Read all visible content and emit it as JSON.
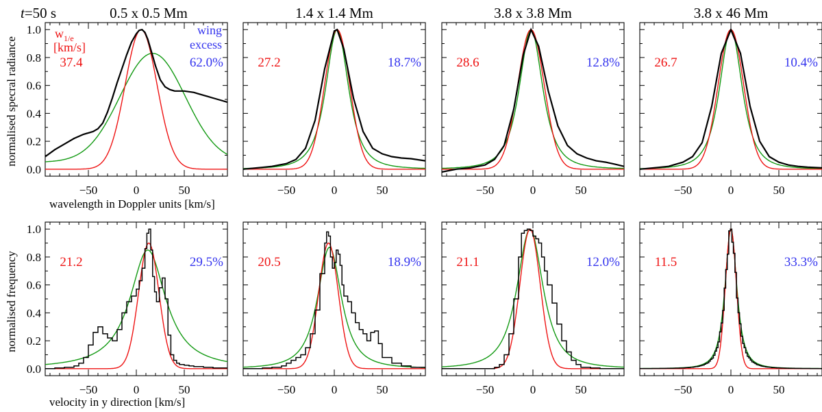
{
  "figure": {
    "time_label_t": "t",
    "time_label_rest": "=50 s",
    "row_titles": {
      "top_ylabel": "normalised specral radiance",
      "top_xlabel": "wavelength in Doppler units [km/s]",
      "bottom_ylabel": "normalised frequency",
      "bottom_xlabel": "velocity in y direction  [km/s]"
    },
    "legend": {
      "w_main": "w",
      "w_sub": "1/e",
      "w_unit": "[km/s]",
      "wing_line1": "wing",
      "wing_line2": "excess"
    },
    "colors": {
      "data": "#000000",
      "gauss": "#ee1111",
      "fit": "#119911",
      "width_text": "#ee1111",
      "excess_text": "#3333ee"
    }
  },
  "chart_data": [
    {
      "type": "line",
      "row": "top",
      "title": "0.5 x 0.5 Mm",
      "xlim": [
        -95,
        95
      ],
      "ylim": [
        -0.05,
        1.05
      ],
      "xticks": [
        -50,
        0,
        50
      ],
      "xtick_labels": [
        "−50",
        "0",
        "50"
      ],
      "yticks": [
        0,
        0.2,
        0.4,
        0.6,
        0.8,
        1.0
      ],
      "ytick_labels": [
        "0.0",
        "0.2",
        "0.4",
        "0.6",
        "0.8",
        "1.0"
      ],
      "width": "37.4",
      "excess": "62.0%",
      "series": [
        {
          "name": "data",
          "style": "line",
          "x": [
            -95,
            -85,
            -75,
            -65,
            -55,
            -50,
            -45,
            -40,
            -35,
            -30,
            -25,
            -20,
            -15,
            -10,
            -5,
            0,
            3,
            6,
            9,
            12,
            15,
            20,
            25,
            30,
            35,
            40,
            45,
            50,
            55,
            60,
            65,
            70,
            75,
            80,
            85,
            90,
            95
          ],
          "y": [
            0.09,
            0.14,
            0.18,
            0.22,
            0.25,
            0.26,
            0.27,
            0.29,
            0.33,
            0.41,
            0.51,
            0.62,
            0.72,
            0.82,
            0.91,
            0.97,
            0.995,
            1.0,
            0.98,
            0.93,
            0.86,
            0.74,
            0.64,
            0.59,
            0.57,
            0.56,
            0.56,
            0.56,
            0.555,
            0.55,
            0.54,
            0.53,
            0.52,
            0.51,
            0.5,
            0.49,
            0.48
          ]
        },
        {
          "name": "gauss",
          "gauss": {
            "c": 5,
            "s": 23.5,
            "a": 1.0,
            "b": 0
          }
        },
        {
          "name": "fit",
          "gauss": {
            "c": 17,
            "s": 48,
            "a": 0.78,
            "b": 0.05
          }
        }
      ]
    },
    {
      "type": "line",
      "row": "top",
      "title": "1.4 x 1.4 Mm",
      "xlim": [
        -95,
        95
      ],
      "ylim": [
        -0.05,
        1.05
      ],
      "xticks": [
        -50,
        0,
        50
      ],
      "xtick_labels": [
        "−50",
        "0",
        "50"
      ],
      "width": "27.2",
      "excess": "18.7%",
      "series": [
        {
          "name": "data",
          "style": "line",
          "x": [
            -95,
            -80,
            -65,
            -50,
            -40,
            -30,
            -20,
            -10,
            0,
            3,
            10,
            20,
            30,
            40,
            50,
            60,
            70,
            80,
            95
          ],
          "y": [
            0.0,
            0.01,
            0.02,
            0.04,
            0.07,
            0.15,
            0.35,
            0.72,
            0.99,
            1.0,
            0.86,
            0.51,
            0.27,
            0.15,
            0.11,
            0.09,
            0.08,
            0.075,
            0.06
          ]
        },
        {
          "name": "gauss",
          "gauss": {
            "c": 3,
            "s": 18.5,
            "a": 1.0,
            "b": 0
          }
        },
        {
          "name": "fit",
          "lorentz": {
            "c": 3,
            "g": 19,
            "p": 1.6,
            "a": 1.0
          }
        }
      ]
    },
    {
      "type": "line",
      "row": "top",
      "title": "3.8 x 3.8 Mm",
      "xlim": [
        -95,
        95
      ],
      "ylim": [
        -0.05,
        1.05
      ],
      "xticks": [
        -50,
        0,
        50
      ],
      "xtick_labels": [
        "−50",
        "0",
        "50"
      ],
      "width": "28.6",
      "excess": "12.8%",
      "series": [
        {
          "name": "data",
          "style": "line",
          "x": [
            -95,
            -80,
            -65,
            -50,
            -40,
            -30,
            -20,
            -10,
            -2,
            6,
            16,
            26,
            36,
            46,
            56,
            66,
            76,
            86,
            95
          ],
          "y": [
            -0.02,
            0.0,
            0.01,
            0.03,
            0.07,
            0.17,
            0.43,
            0.82,
            1.0,
            0.88,
            0.56,
            0.31,
            0.17,
            0.11,
            0.08,
            0.06,
            0.05,
            0.035,
            0.02
          ]
        },
        {
          "name": "gauss",
          "gauss": {
            "c": -2,
            "s": 19.5,
            "a": 1.0,
            "b": 0
          }
        },
        {
          "name": "fit",
          "lorentz": {
            "c": -2,
            "g": 19.5,
            "p": 1.6,
            "a": 1.0
          }
        }
      ]
    },
    {
      "type": "line",
      "row": "top",
      "title": "3.8 x 46 Mm",
      "xlim": [
        -95,
        95
      ],
      "ylim": [
        -0.05,
        1.05
      ],
      "xticks": [
        -50,
        0,
        50
      ],
      "xtick_labels": [
        "−50",
        "0",
        "50"
      ],
      "width": "26.7",
      "excess": "10.4%",
      "series": [
        {
          "name": "data",
          "style": "line",
          "x": [
            -95,
            -80,
            -65,
            -50,
            -40,
            -30,
            -20,
            -10,
            0,
            10,
            20,
            30,
            40,
            50,
            60,
            70,
            80,
            95
          ],
          "y": [
            0.0,
            0.01,
            0.02,
            0.05,
            0.09,
            0.19,
            0.45,
            0.83,
            1.0,
            0.83,
            0.45,
            0.2,
            0.09,
            0.05,
            0.03,
            0.02,
            0.015,
            0.01
          ]
        },
        {
          "name": "gauss",
          "gauss": {
            "c": 0,
            "s": 18.8,
            "a": 1.0,
            "b": 0
          }
        },
        {
          "name": "fit",
          "lorentz": {
            "c": 0,
            "g": 19.5,
            "p": 1.7,
            "a": 1.0
          }
        }
      ]
    },
    {
      "type": "line",
      "row": "bottom",
      "title": "",
      "xlim": [
        -95,
        95
      ],
      "ylim": [
        -0.05,
        1.05
      ],
      "xticks": [
        -50,
        0,
        50
      ],
      "xtick_labels": [
        "−50",
        "0",
        "50"
      ],
      "yticks": [
        0,
        0.2,
        0.4,
        0.6,
        0.8,
        1.0
      ],
      "ytick_labels": [
        "0.0",
        "0.2",
        "0.4",
        "0.6",
        "0.8",
        "1.0"
      ],
      "width": "21.2",
      "excess": "29.5%",
      "series": [
        {
          "name": "data",
          "style": "step",
          "x": [
            -95,
            -85,
            -75,
            -65,
            -60,
            -55,
            -50,
            -45,
            -40,
            -35,
            -30,
            -25,
            -20,
            -15,
            -10,
            -5,
            0,
            3,
            6,
            9,
            11,
            13,
            15,
            17,
            19,
            21,
            24,
            27,
            30,
            33,
            36,
            39,
            42,
            45,
            50,
            55,
            60,
            70,
            80,
            95
          ],
          "y": [
            0.0,
            0.005,
            0.01,
            0.02,
            0.04,
            0.08,
            0.17,
            0.26,
            0.3,
            0.25,
            0.22,
            0.2,
            0.28,
            0.4,
            0.48,
            0.52,
            0.57,
            0.63,
            0.72,
            0.86,
            0.97,
            1.0,
            0.85,
            0.66,
            0.55,
            0.48,
            0.58,
            0.65,
            0.5,
            0.24,
            0.1,
            0.06,
            0.04,
            0.03,
            0.025,
            0.02,
            0.015,
            0.01,
            0.005,
            0.0
          ]
        },
        {
          "name": "gauss",
          "gauss": {
            "c": 13,
            "s": 15,
            "a": 0.9,
            "b": 0
          }
        },
        {
          "name": "fit",
          "lorentz": {
            "c": 12,
            "g": 24,
            "p": 1.1,
            "a": 0.85
          }
        }
      ]
    },
    {
      "type": "line",
      "row": "bottom",
      "title": "",
      "xlim": [
        -95,
        95
      ],
      "ylim": [
        -0.05,
        1.05
      ],
      "xticks": [
        -50,
        0,
        50
      ],
      "xtick_labels": [
        "−50",
        "0",
        "50"
      ],
      "width": "20.5",
      "excess": "18.9%",
      "series": [
        {
          "name": "data",
          "style": "step",
          "x": [
            -95,
            -85,
            -75,
            -65,
            -55,
            -50,
            -45,
            -40,
            -35,
            -30,
            -25,
            -20,
            -15,
            -10,
            -8,
            -6,
            -4,
            -2,
            0,
            2,
            4,
            6,
            8,
            10,
            14,
            18,
            22,
            26,
            30,
            34,
            38,
            42,
            46,
            50,
            60,
            70,
            80,
            95
          ],
          "y": [
            0.0,
            0.0,
            0.005,
            0.01,
            0.02,
            0.04,
            0.06,
            0.08,
            0.1,
            0.15,
            0.25,
            0.42,
            0.68,
            0.9,
            0.98,
            0.95,
            0.8,
            0.72,
            0.76,
            0.85,
            0.82,
            0.74,
            0.6,
            0.52,
            0.48,
            0.4,
            0.33,
            0.28,
            0.25,
            0.2,
            0.26,
            0.27,
            0.18,
            0.08,
            0.04,
            0.02,
            0.01,
            0.0
          ]
        },
        {
          "name": "gauss",
          "gauss": {
            "c": -6,
            "s": 14.5,
            "a": 0.9,
            "b": 0
          }
        },
        {
          "name": "fit",
          "lorentz": {
            "c": -5,
            "g": 18,
            "p": 1.35,
            "a": 0.87
          }
        }
      ]
    },
    {
      "type": "line",
      "row": "bottom",
      "title": "",
      "xlim": [
        -95,
        95
      ],
      "ylim": [
        -0.05,
        1.05
      ],
      "xticks": [
        -50,
        0,
        50
      ],
      "xtick_labels": [
        "−50",
        "0",
        "50"
      ],
      "width": "21.1",
      "excess": "12.0%",
      "series": [
        {
          "name": "data",
          "style": "step",
          "x": [
            -95,
            -80,
            -65,
            -50,
            -40,
            -35,
            -30,
            -25,
            -20,
            -15,
            -12,
            -9,
            -6,
            -3,
            0,
            3,
            6,
            9,
            12,
            15,
            20,
            25,
            30,
            35,
            40,
            45,
            50,
            60,
            70,
            80,
            95
          ],
          "y": [
            0.0,
            0.0,
            0.0,
            0.0,
            0.01,
            0.03,
            0.1,
            0.25,
            0.5,
            0.8,
            0.97,
            0.99,
            1.0,
            0.99,
            0.95,
            0.93,
            0.9,
            0.8,
            0.7,
            0.6,
            0.47,
            0.32,
            0.2,
            0.12,
            0.06,
            0.03,
            0.01,
            0.005,
            0.0,
            0.0,
            0.0
          ]
        },
        {
          "name": "gauss",
          "gauss": {
            "c": -3,
            "s": 15,
            "a": 1.0,
            "b": 0
          }
        },
        {
          "name": "fit",
          "lorentz": {
            "c": -3,
            "g": 20,
            "p": 1.4,
            "a": 1.0
          }
        }
      ]
    },
    {
      "type": "line",
      "row": "bottom",
      "title": "",
      "xlim": [
        -95,
        95
      ],
      "ylim": [
        -0.05,
        1.05
      ],
      "xticks": [
        -50,
        0,
        50
      ],
      "xtick_labels": [
        "−50",
        "0",
        "50"
      ],
      "width": "11.5",
      "excess": "33.3%",
      "series": [
        {
          "name": "data",
          "style": "step",
          "lorentz": {
            "c": 0,
            "g": 9,
            "p": 1.5,
            "a": 1.0
          }
        },
        {
          "name": "gauss",
          "gauss": {
            "c": 0,
            "s": 8.1,
            "a": 1.0,
            "b": 0
          }
        },
        {
          "name": "fit",
          "lorentz": {
            "c": 0,
            "g": 9.3,
            "p": 1.45,
            "a": 1.0
          }
        }
      ]
    }
  ]
}
